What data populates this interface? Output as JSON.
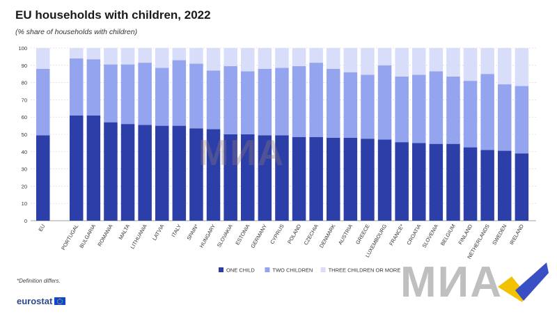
{
  "page": {
    "title": "EU households with children, 2022",
    "subtitle": "(%  share of households with children)",
    "footnote": "*Definition differs.",
    "logo": "eurostat",
    "watermark": "МИА"
  },
  "colors": {
    "one_child": "#2c3ea8",
    "two_children": "#95a4ee",
    "three_or_more": "#d8def9",
    "grid": "#d0d0d0"
  },
  "chart_data": {
    "type": "bar",
    "stacked": true,
    "title": "EU households with children, 2022",
    "subtitle": "(%  share of households with children)",
    "ylim": [
      0,
      100
    ],
    "yticks": [
      0,
      10,
      20,
      30,
      40,
      50,
      60,
      70,
      80,
      90,
      100
    ],
    "grid": true,
    "legend_position": "bottom",
    "categories": [
      "EU",
      "PORTUGAL",
      "BULGARIA",
      "ROMANIA",
      "MALTA",
      "LITHUANIA",
      "LATVIA",
      "ITALY",
      "SPAIN*",
      "HUNGARY",
      "SLOVAKIA",
      "ESTONIA",
      "GERMANY",
      "CYPRUS",
      "POLAND",
      "CZECHIA",
      "DENMARK",
      "AUSTRIA",
      "GREECE",
      "LUXEMBOURG",
      "FRANCE*",
      "CROATIA",
      "SLOVENIA",
      "BELGIUM",
      "FINLAND",
      "NETHERLANDS",
      "SWEDEN",
      "IRELAND"
    ],
    "series": [
      {
        "name": "ONE CHILD",
        "values": [
          49.5,
          61,
          61,
          57,
          56,
          55.5,
          55,
          55,
          53.5,
          53,
          50,
          50,
          49.5,
          49.5,
          48.5,
          48.5,
          48,
          48,
          47.5,
          47,
          45.5,
          45,
          44.5,
          44.5,
          42.5,
          41,
          40.5,
          39
        ]
      },
      {
        "name": "TWO CHILDREN",
        "values": [
          38.5,
          33,
          32.5,
          33.5,
          34.5,
          36,
          33.5,
          38,
          37.5,
          34,
          39.5,
          36.5,
          38.5,
          39,
          41,
          43,
          40,
          38,
          37,
          43,
          38,
          39.5,
          42,
          39,
          38.5,
          44,
          38.5,
          39
        ]
      },
      {
        "name": "THREE CHILDREN OR MORE",
        "values": [
          12,
          6,
          6.5,
          9.5,
          9.5,
          8.5,
          11.5,
          7,
          9,
          13,
          10.5,
          13.5,
          12,
          11.5,
          10.5,
          8.5,
          12,
          14,
          15.5,
          10,
          16.5,
          15.5,
          13.5,
          16.5,
          19,
          15,
          21,
          22
        ]
      }
    ]
  }
}
